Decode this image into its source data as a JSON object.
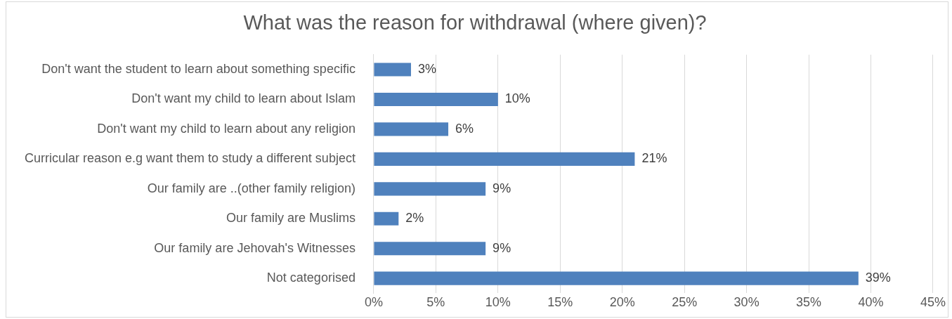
{
  "chart_data": {
    "type": "bar",
    "orientation": "horizontal",
    "title": "What was the reason for withdrawal (where given)?",
    "categories": [
      "Don't want the student to learn about something specific",
      "Don't want my child to learn about Islam",
      "Don't want my child to learn about any religion",
      "Curricular reason e.g want them to study a different subject",
      "Our family are ..(other family religion)",
      "Our family are Muslims",
      "Our family are Jehovah's Witnesses",
      "Not categorised"
    ],
    "values": [
      3,
      10,
      6,
      21,
      9,
      2,
      9,
      39
    ],
    "value_labels": [
      "3%",
      "10%",
      "6%",
      "21%",
      "9%",
      "2%",
      "9%",
      "39%"
    ],
    "color": "#4f81bd",
    "xlim": [
      0,
      45
    ],
    "xticks": [
      {
        "value": 0,
        "label": "0%"
      },
      {
        "value": 5,
        "label": "5%"
      },
      {
        "value": 10,
        "label": "10%"
      },
      {
        "value": 15,
        "label": "15%"
      },
      {
        "value": 20,
        "label": "20%"
      },
      {
        "value": 25,
        "label": "25%"
      },
      {
        "value": 30,
        "label": "30%"
      },
      {
        "value": 35,
        "label": "35%"
      },
      {
        "value": 40,
        "label": "40%"
      },
      {
        "value": 45,
        "label": "45%"
      }
    ],
    "grid": "x",
    "legend": false
  }
}
